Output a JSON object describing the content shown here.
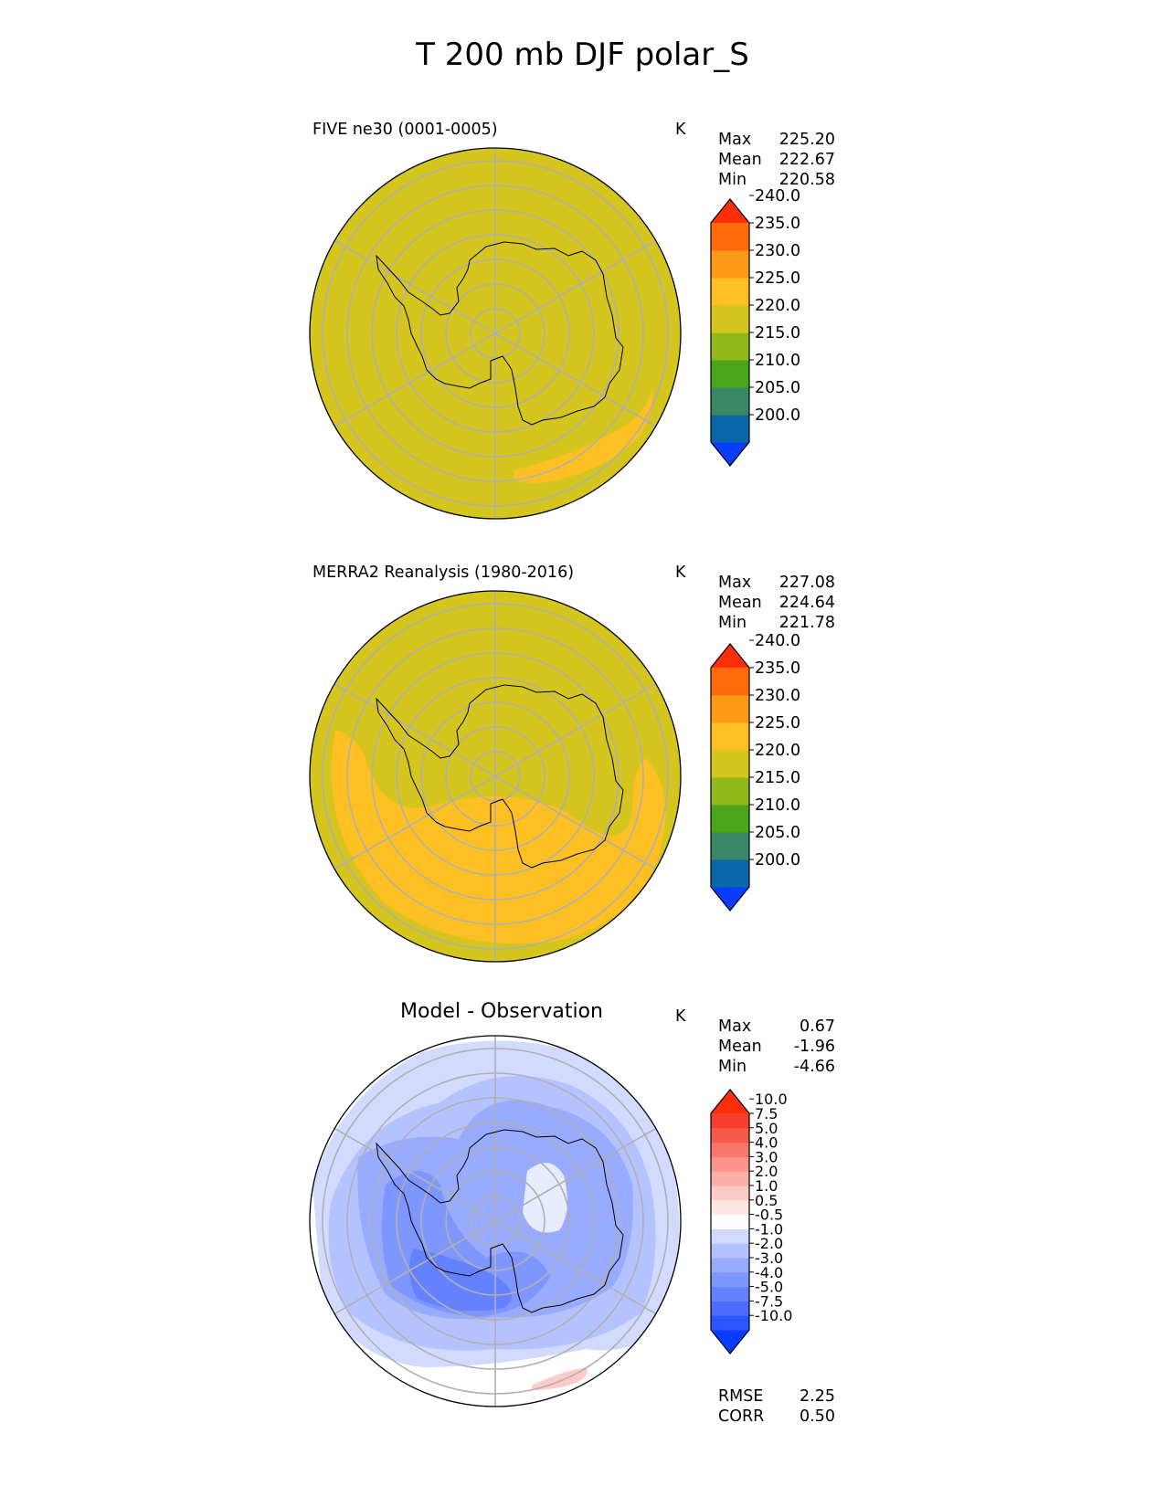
{
  "title": "T 200 mb DJF polar_S",
  "chart_data": [
    {
      "type": "heatmap",
      "projection": "south-polar-stereographic",
      "title": "FIVE ne30 (0001-0005)",
      "units": "K",
      "stats": {
        "max": "225.20",
        "mean": "222.67",
        "min": "220.58"
      },
      "colorbar": {
        "levels": [
          "200.0",
          "205.0",
          "210.0",
          "215.0",
          "220.0",
          "225.0",
          "230.0",
          "235.0",
          "240.0"
        ],
        "colors": [
          "#0a3cff",
          "#0868a8",
          "#398766",
          "#4aa618",
          "#92b81a",
          "#d4c61e",
          "#fdbf22",
          "#fd9a18",
          "#ff6a0a",
          "#ff2e0a"
        ],
        "extend": "both"
      },
      "field_summary": "Nearly uniform 220-225 K over the whole cap; a 225-230 K band near the outer edge in the lower-right sector."
    },
    {
      "type": "heatmap",
      "projection": "south-polar-stereographic",
      "title": "MERRA2 Reanalysis (1980-2016)",
      "units": "K",
      "stats": {
        "max": "227.08",
        "mean": "224.64",
        "min": "221.78"
      },
      "colorbar": {
        "levels": [
          "200.0",
          "205.0",
          "210.0",
          "215.0",
          "220.0",
          "225.0",
          "230.0",
          "235.0",
          "240.0"
        ],
        "colors": [
          "#0a3cff",
          "#0868a8",
          "#398766",
          "#4aa618",
          "#92b81a",
          "#d4c61e",
          "#fdbf22",
          "#fd9a18",
          "#ff6a0a",
          "#ff2e0a"
        ],
        "extend": "both"
      },
      "field_summary": "220-225 K over the upper half; a broad 225-230 K crescent over the lower half of the cap."
    },
    {
      "type": "heatmap",
      "projection": "south-polar-stereographic",
      "title": "Model - Observation",
      "units": "K",
      "stats": {
        "max": "0.67",
        "mean": "-1.96",
        "min": "-4.66"
      },
      "extra_stats": {
        "rmse": "2.25",
        "corr": "0.50"
      },
      "colorbar": {
        "levels": [
          "-10.0",
          "-7.5",
          "-5.0",
          "-4.0",
          "-3.0",
          "-2.0",
          "-1.0",
          "-0.5",
          "0.5",
          "1.0",
          "2.0",
          "3.0",
          "4.0",
          "5.0",
          "7.5",
          "10.0"
        ],
        "colors": [
          "#0a3cff",
          "#2e56ff",
          "#4a6cff",
          "#6482ff",
          "#7e96ff",
          "#98abff",
          "#b4c2ff",
          "#d2dbff",
          "#ffffff",
          "#fde6e4",
          "#fccbc6",
          "#fbafa8",
          "#fa938a",
          "#f8776b",
          "#f65a4c",
          "#f53e2e",
          "#ff2e0a"
        ],
        "extend": "both"
      },
      "field_summary": "Negative differences almost everywhere (mostly -1 to -3 K), strongest (-3 to -4 K) over West Antarctica; near-zero/slightly positive near the bottom edge."
    }
  ],
  "labels": {
    "max": "Max",
    "mean": "Mean",
    "min": "Min",
    "rmse": "RMSE",
    "corr": "CORR"
  }
}
